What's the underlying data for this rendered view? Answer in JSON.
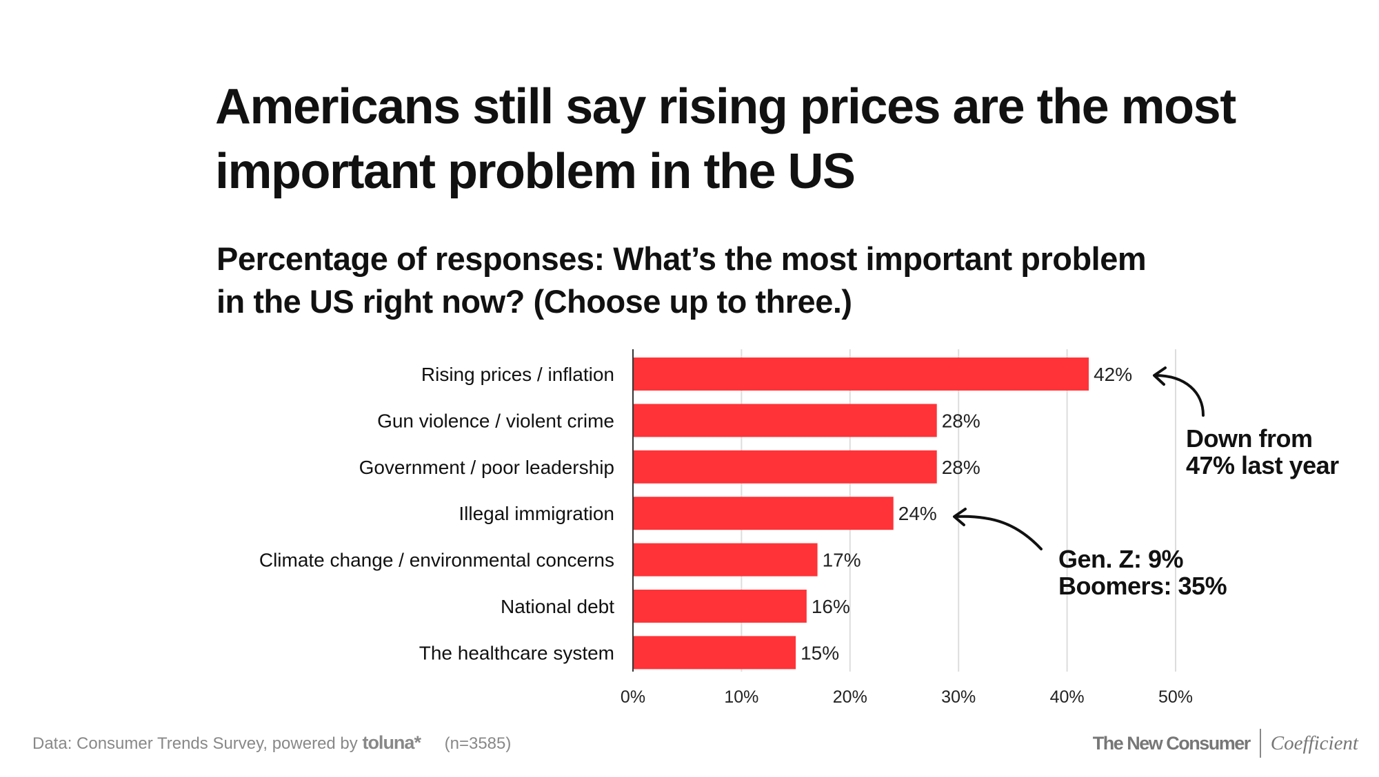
{
  "title": "Americans still say rising prices are the most important problem in the US",
  "subtitle": "Percentage of responses: What’s the most important problem in the US right now? (Choose up to three.)",
  "chart_data": {
    "type": "bar",
    "orientation": "horizontal",
    "categories": [
      "Rising prices / inflation",
      "Gun violence / violent crime",
      "Government / poor leadership",
      "Illegal immigration",
      "Climate change / environmental concerns",
      "National debt",
      "The healthcare system"
    ],
    "values": [
      42,
      28,
      28,
      24,
      17,
      16,
      15
    ],
    "value_labels": [
      "42%",
      "28%",
      "28%",
      "24%",
      "17%",
      "16%",
      "15%"
    ],
    "xlim": [
      0,
      50
    ],
    "xticks": [
      0,
      10,
      20,
      30,
      40,
      50
    ],
    "xtick_labels": [
      "0%",
      "10%",
      "20%",
      "30%",
      "40%",
      "50%"
    ],
    "grid": true,
    "bar_color": "#ff3338",
    "annotations": [
      {
        "target": "Rising prices / inflation",
        "lines": [
          "Down from",
          "47% last year"
        ]
      },
      {
        "target": "Illegal immigration",
        "lines": [
          "Gen. Z: 9%",
          "Boomers: 35%"
        ]
      }
    ]
  },
  "footer": {
    "source": "Data: Consumer Trends Survey, powered by",
    "source_logo": "toluna*",
    "sample": "(n=3585)",
    "brand1": "The New Consumer",
    "brand2": "Coefficient"
  }
}
